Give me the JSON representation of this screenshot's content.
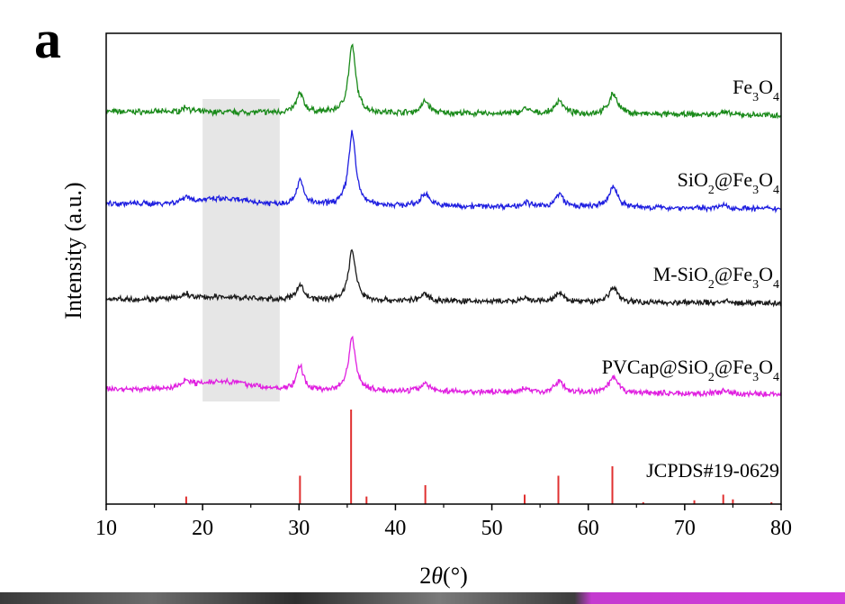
{
  "panel_label": "a",
  "chart_data": {
    "type": "line",
    "title": "",
    "xlabel": "2θ(°)",
    "ylabel": "Intensity (a.u.)",
    "xlim": [
      10,
      80
    ],
    "xticks": [
      10,
      20,
      30,
      40,
      50,
      60,
      70,
      80
    ],
    "grid": false,
    "shaded_region": {
      "x": [
        20,
        28
      ],
      "color": "#e6e6e6"
    },
    "peaks": [
      {
        "x": 18.3,
        "w": 0.45
      },
      {
        "x": 30.1,
        "w": 0.45
      },
      {
        "x": 35.5,
        "w": 0.45
      },
      {
        "x": 43.1,
        "w": 0.5
      },
      {
        "x": 53.5,
        "w": 0.5
      },
      {
        "x": 57.0,
        "w": 0.5
      },
      {
        "x": 62.6,
        "w": 0.55
      },
      {
        "x": 74.0,
        "w": 0.6
      }
    ],
    "series": [
      {
        "label_html": "Fe<tspan baseline-shift=\"sub\" font-size=\"14\">3</tspan>O<tspan baseline-shift=\"sub\" font-size=\"14\">4</tspan>",
        "label_text": "Fe3O4",
        "color": "#1a8a1a",
        "heights": [
          0.06,
          0.22,
          0.78,
          0.14,
          0.06,
          0.16,
          0.24,
          0.03
        ],
        "amorphous": 0.0
      },
      {
        "label_html": "SiO<tspan baseline-shift=\"sub\" font-size=\"14\">2</tspan>@Fe<tspan baseline-shift=\"sub\" font-size=\"14\">3</tspan>O<tspan baseline-shift=\"sub\" font-size=\"14\">4</tspan>",
        "label_text": "SiO2@Fe3O4",
        "color": "#1f1fe0",
        "heights": [
          0.07,
          0.28,
          0.85,
          0.15,
          0.05,
          0.15,
          0.24,
          0.03
        ],
        "amorphous": 0.06
      },
      {
        "label_html": "M-SiO<tspan baseline-shift=\"sub\" font-size=\"14\">2</tspan>@Fe<tspan baseline-shift=\"sub\" font-size=\"14\">3</tspan>O<tspan baseline-shift=\"sub\" font-size=\"14\">4</tspan>",
        "label_text": "M-SiO2@Fe3O4",
        "color": "#1a1a1a",
        "heights": [
          0.05,
          0.18,
          0.58,
          0.08,
          0.03,
          0.1,
          0.17,
          0.02
        ],
        "amorphous": 0.03
      },
      {
        "label_html": "PVCap@SiO<tspan baseline-shift=\"sub\" font-size=\"14\">2</tspan>@Fe<tspan baseline-shift=\"sub\" font-size=\"14\">3</tspan>O<tspan baseline-shift=\"sub\" font-size=\"14\">4</tspan>",
        "label_text": "PVCap@SiO2@Fe3O4",
        "color": "#e020e0",
        "heights": [
          0.08,
          0.28,
          0.62,
          0.1,
          0.04,
          0.14,
          0.18,
          0.03
        ],
        "amorphous": 0.1
      }
    ],
    "reference": {
      "label": "JCPDS#19-0629",
      "color": "#e03030",
      "lines": [
        {
          "x": 18.3,
          "h": 0.08
        },
        {
          "x": 30.1,
          "h": 0.3
        },
        {
          "x": 35.4,
          "h": 1.0
        },
        {
          "x": 37.0,
          "h": 0.08
        },
        {
          "x": 43.1,
          "h": 0.2
        },
        {
          "x": 53.4,
          "h": 0.1
        },
        {
          "x": 56.9,
          "h": 0.3
        },
        {
          "x": 62.5,
          "h": 0.4
        },
        {
          "x": 65.7,
          "h": 0.02
        },
        {
          "x": 71.0,
          "h": 0.04
        },
        {
          "x": 74.0,
          "h": 0.1
        },
        {
          "x": 75.0,
          "h": 0.05
        },
        {
          "x": 79.0,
          "h": 0.02
        }
      ]
    }
  }
}
